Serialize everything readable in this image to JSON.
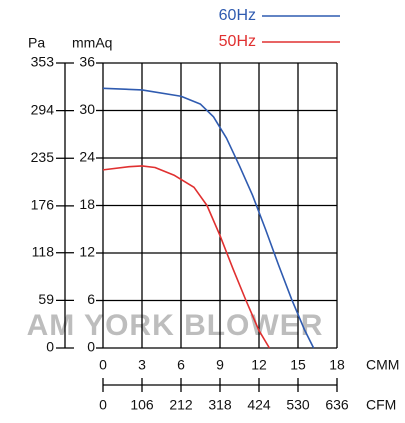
{
  "chart_data": {
    "type": "line",
    "y_label": "mmAq",
    "y2_label": "Pa",
    "x_label": "CMM",
    "x2_label": "CFM",
    "watermark": "AM YORK BLOWER",
    "xlim": [
      0,
      18
    ],
    "xticks": [
      0,
      3,
      6,
      9,
      12,
      15,
      18
    ],
    "x2lim": [
      0,
      636
    ],
    "x2ticks": [
      0,
      106,
      212,
      318,
      424,
      530,
      636
    ],
    "ylim": [
      0,
      36
    ],
    "yticks": [
      0,
      6,
      12,
      18,
      24,
      30,
      36
    ],
    "y2lim": [
      0,
      353
    ],
    "y2ticks": [
      0,
      59,
      118,
      176,
      235,
      294,
      353
    ],
    "grid": true,
    "series": [
      {
        "name": "60Hz",
        "color": "#2f5bb0",
        "x": [
          0,
          3,
          6,
          7.5,
          8.5,
          9.5,
          10.5,
          11.5,
          12.5,
          13.5,
          14.5,
          15.5,
          16.2
        ],
        "values": [
          32.8,
          32.6,
          31.8,
          30.8,
          29.2,
          26.5,
          23,
          19.3,
          15,
          10.5,
          6.2,
          2.3,
          0
        ]
      },
      {
        "name": "50Hz",
        "color": "#e03030",
        "x": [
          0,
          2,
          3,
          4,
          5.5,
          7,
          8,
          9,
          10,
          11,
          12,
          12.8
        ],
        "values": [
          22.5,
          22.9,
          23,
          22.8,
          21.8,
          20.3,
          18,
          14.2,
          10,
          6,
          2.2,
          0
        ]
      }
    ]
  }
}
